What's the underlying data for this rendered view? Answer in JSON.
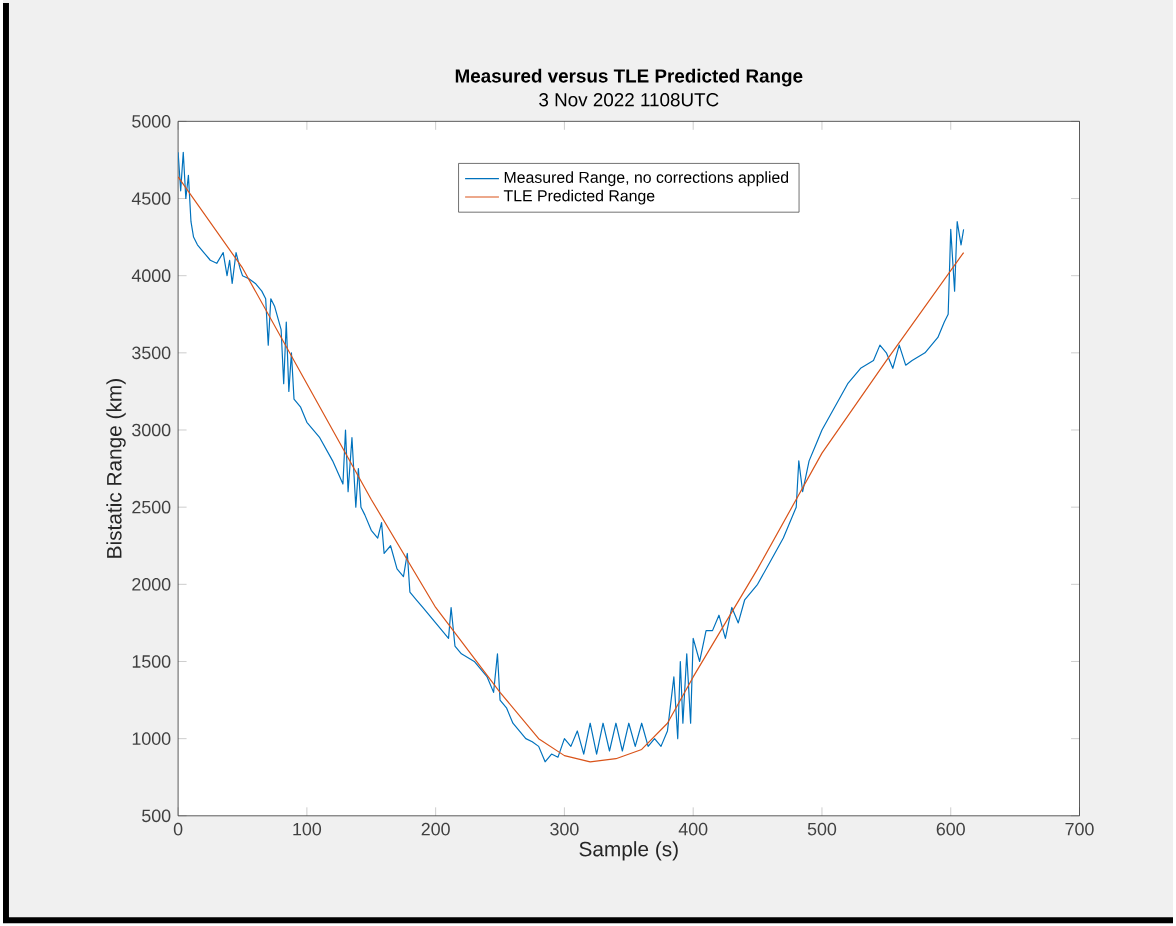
{
  "chart_data": {
    "type": "line",
    "title": "Measured versus TLE Predicted Range",
    "subtitle": "3 Nov 2022 1108UTC",
    "xlabel": "Sample (s)",
    "ylabel": "Bistatic Range (km)",
    "xlim": [
      0,
      700
    ],
    "ylim": [
      500,
      5000
    ],
    "xticks": [
      0,
      100,
      200,
      300,
      400,
      500,
      600,
      700
    ],
    "yticks": [
      500,
      1000,
      1500,
      2000,
      2500,
      3000,
      3500,
      4000,
      4500,
      5000
    ],
    "grid": false,
    "legend": "top",
    "marker": "none",
    "line_style": "solid",
    "series": [
      {
        "name": "Measured Range, no corrections applied",
        "color": "#0072bd",
        "x": [
          0,
          2,
          4,
          6,
          8,
          10,
          12,
          15,
          20,
          25,
          30,
          35,
          38,
          40,
          42,
          45,
          48,
          50,
          55,
          60,
          65,
          68,
          70,
          72,
          75,
          80,
          82,
          84,
          86,
          88,
          90,
          95,
          100,
          110,
          120,
          128,
          130,
          132,
          135,
          138,
          140,
          142,
          145,
          150,
          155,
          158,
          160,
          165,
          170,
          175,
          178,
          180,
          185,
          190,
          195,
          200,
          205,
          210,
          212,
          215,
          220,
          230,
          240,
          245,
          248,
          250,
          255,
          260,
          265,
          270,
          275,
          280,
          285,
          290,
          295,
          300,
          305,
          310,
          315,
          320,
          325,
          330,
          335,
          340,
          345,
          350,
          355,
          360,
          365,
          370,
          375,
          380,
          385,
          388,
          390,
          392,
          395,
          398,
          400,
          405,
          410,
          415,
          420,
          425,
          430,
          435,
          440,
          450,
          460,
          470,
          480,
          482,
          485,
          490,
          495,
          500,
          510,
          520,
          530,
          540,
          545,
          550,
          555,
          560,
          565,
          570,
          580,
          590,
          595,
          598,
          600,
          603,
          605,
          608,
          610
        ],
        "values": [
          4800,
          4550,
          4800,
          4500,
          4650,
          4350,
          4250,
          4200,
          4150,
          4100,
          4080,
          4150,
          4000,
          4100,
          3950,
          4150,
          4050,
          4000,
          3980,
          3950,
          3900,
          3850,
          3550,
          3850,
          3800,
          3650,
          3300,
          3700,
          3250,
          3500,
          3200,
          3150,
          3050,
          2950,
          2800,
          2650,
          3000,
          2600,
          2950,
          2500,
          2750,
          2500,
          2450,
          2350,
          2300,
          2400,
          2200,
          2250,
          2100,
          2050,
          2200,
          1950,
          1900,
          1850,
          1800,
          1750,
          1700,
          1650,
          1850,
          1600,
          1550,
          1500,
          1400,
          1300,
          1550,
          1250,
          1200,
          1100,
          1050,
          1000,
          980,
          950,
          850,
          900,
          880,
          1000,
          950,
          1050,
          900,
          1100,
          900,
          1100,
          920,
          1100,
          920,
          1100,
          950,
          1100,
          950,
          1000,
          950,
          1050,
          1400,
          1000,
          1500,
          1100,
          1550,
          1100,
          1650,
          1500,
          1700,
          1700,
          1800,
          1650,
          1850,
          1750,
          1900,
          2000,
          2150,
          2300,
          2500,
          2800,
          2600,
          2800,
          2900,
          3000,
          3150,
          3300,
          3400,
          3450,
          3550,
          3500,
          3400,
          3550,
          3420,
          3450,
          3500,
          3600,
          3700,
          3750,
          4300,
          3900,
          4350,
          4200,
          4300
        ]
      },
      {
        "name": "TLE Predicted Range",
        "color": "#d95319",
        "x": [
          0,
          50,
          100,
          150,
          200,
          250,
          280,
          300,
          320,
          340,
          360,
          380,
          400,
          450,
          500,
          550,
          610
        ],
        "values": [
          4640,
          4050,
          3300,
          2550,
          1850,
          1300,
          1000,
          890,
          850,
          870,
          930,
          1100,
          1400,
          2100,
          2850,
          3450,
          4150
        ]
      }
    ]
  }
}
